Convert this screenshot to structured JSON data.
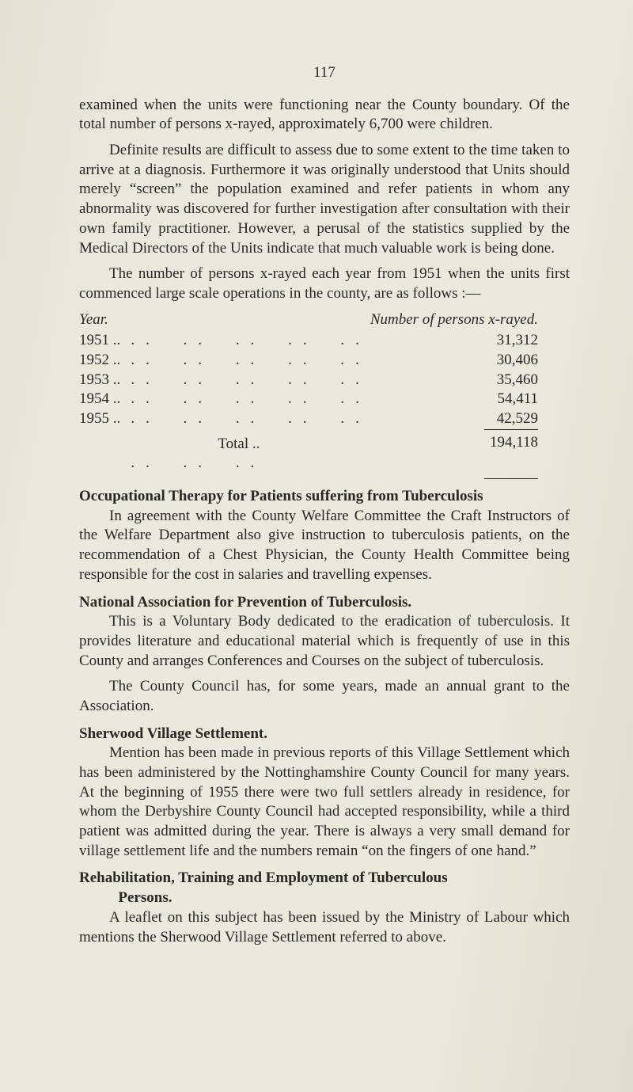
{
  "page_number": "117",
  "para1": "examined when the units were functioning near the County boundary. Of the total number of persons x-rayed, approximately 6,700 were children.",
  "para2": "Definite results are difficult to assess due to some extent to the time taken to arrive at a diagnosis. Furthermore it was originally understood that Units should merely “screen” the population examined and refer patients in whom any abnormality was discovered for further investigation after consultation with their own family practitioner. However, a perusal of the statistics supplied by the Medical Directors of the Units indicate that much valuable work is being done.",
  "para3": "The number of persons x-rayed each year from 1951 when the units first commenced large scale operations in the county, are as follows :—",
  "table": {
    "year_header": "Year.",
    "number_header": "Number of persons x-rayed.",
    "rows": [
      {
        "year": "1951 ..",
        "value": "31,312"
      },
      {
        "year": "1952 ..",
        "value": "30,406"
      },
      {
        "year": "1953 ..",
        "value": "35,460"
      },
      {
        "year": "1954 ..",
        "value": "54,411"
      },
      {
        "year": "1955 ..",
        "value": "42,529"
      }
    ],
    "total_label": "Total  ..",
    "total_value": "194,118"
  },
  "sec1_heading": "Occupational Therapy for Patients suffering from Tuberculosis",
  "sec1_body": "In agreement with the County Welfare Committee the Craft Instructors of the Welfare Department also give instruction to tuberculosis patients, on the recommendation of a Chest Physician, the County Health Committee being responsible for the cost in salaries and travelling expenses.",
  "sec2_heading": "National Association for Prevention of Tuberculosis.",
  "sec2_body1": "This is a Voluntary Body dedicated to the eradication of tuberculosis. It provides literature and educational material which is frequently of use in this County and arranges Conferences and Courses on the subject of tuberculosis.",
  "sec2_body2": "The County Council has, for some years, made an annual grant to the Association.",
  "sec3_heading": "Sherwood Village Settlement.",
  "sec3_body": "Mention has been made in previous reports of this Village Settlement which has been administered by the Nottinghamshire County Council for many years. At the beginning of 1955 there were two full settlers already in residence, for whom the Derbyshire County Council had accepted responsibility, while a third patient was admitted during the year. There is always a very small demand for village settlement life and the numbers remain “on the fingers of one hand.”",
  "sec4_heading_line1": "Rehabilitation, Training and Employment of Tuberculous",
  "sec4_heading_line2": "Persons.",
  "sec4_body": "A leaflet on this subject has been issued by the Ministry of Labour which mentions the Sherwood Village Settlement referred to above.",
  "dots_pattern": ".. .. .. .. ..",
  "dots_pattern_short": ".. .. .."
}
